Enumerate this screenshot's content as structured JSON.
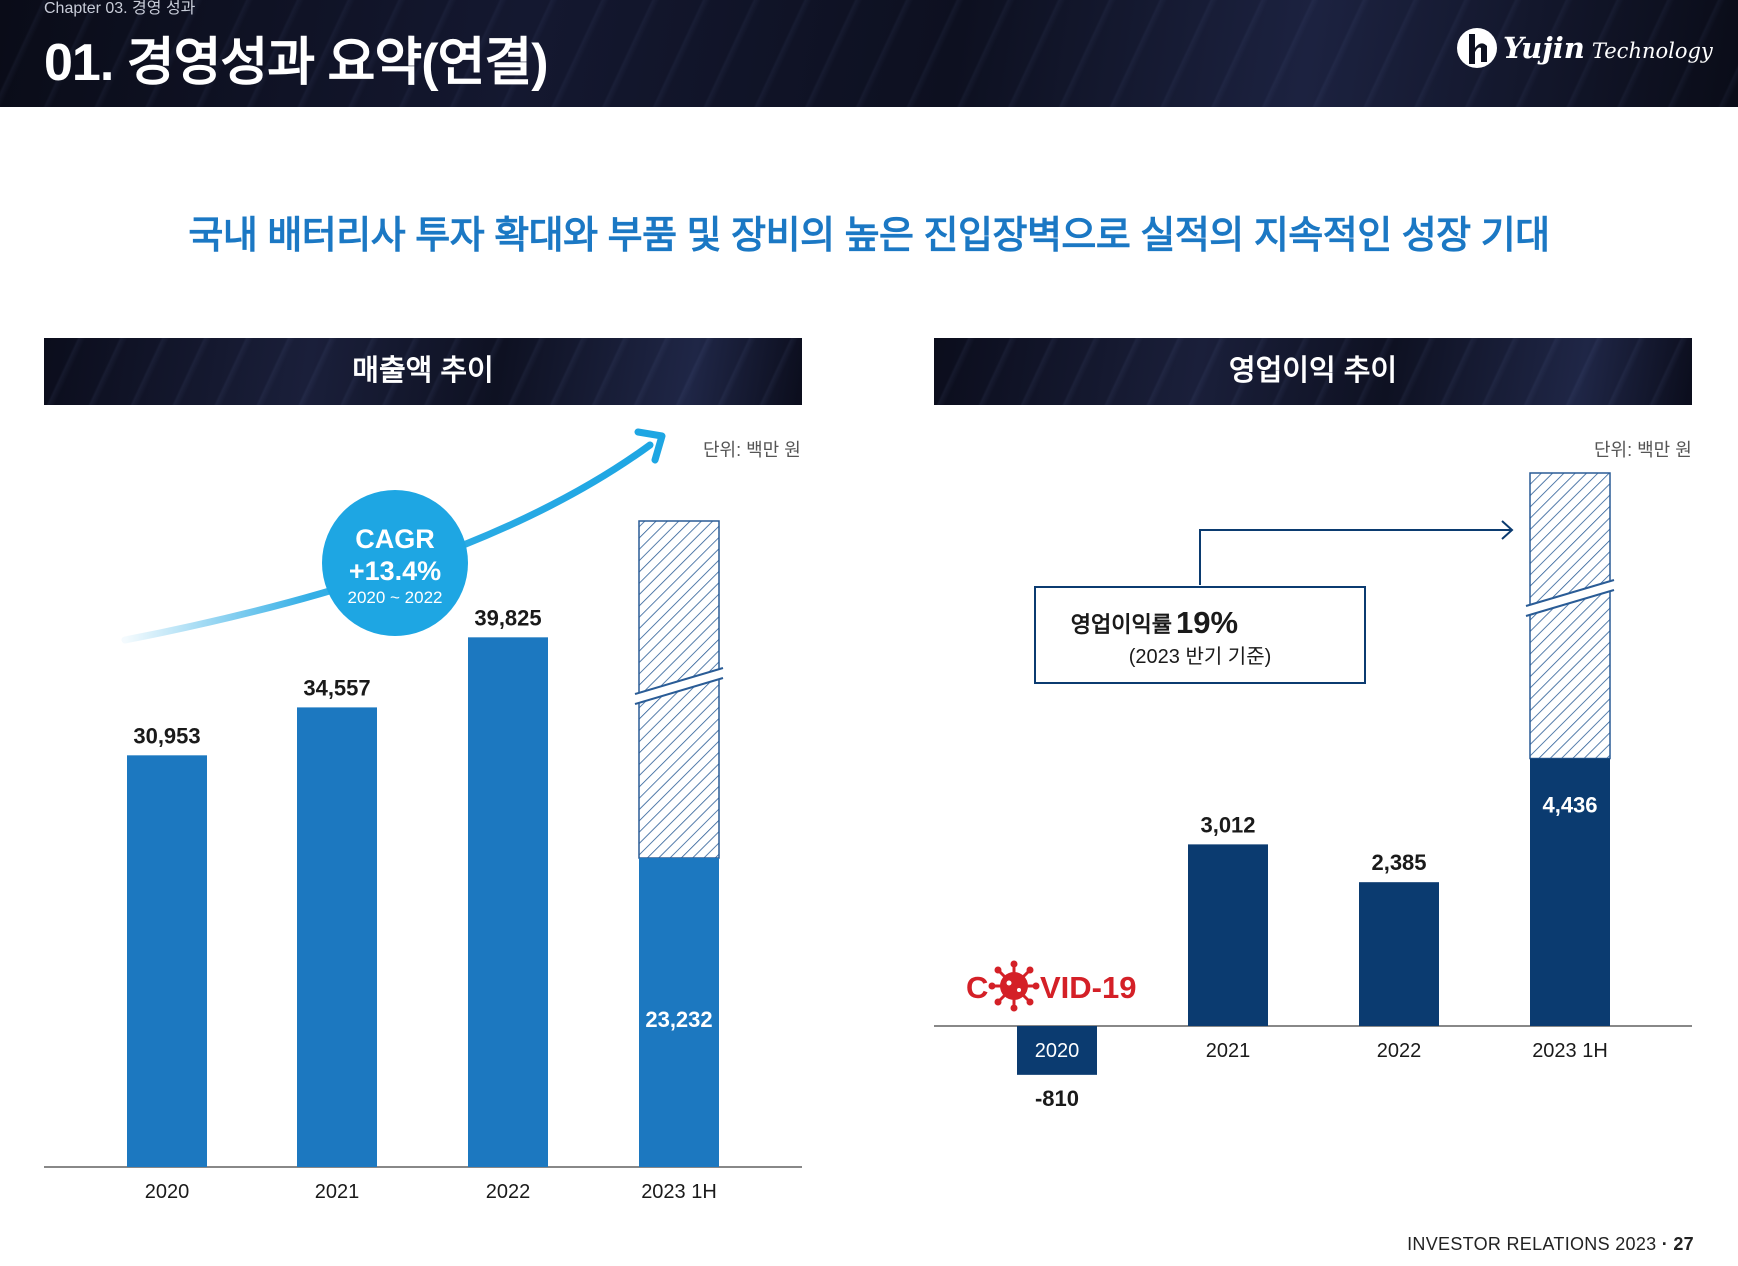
{
  "header": {
    "chapter": "Chapter 03. 경영 성과",
    "title": "01. 경영성과 요약(연결)",
    "logo_name": "Yujin",
    "logo_sub": "Technology"
  },
  "headline": "국내 배터리사 투자 확대와 부품 및 장비의 높은 진입장벽으로 실적의 지속적인 성장 기대",
  "colors": {
    "revenue_bar": "#1c78c0",
    "profit_bar": "#0b3b70",
    "accent": "#1ea6e3",
    "covid_red": "#d42027"
  },
  "footer": {
    "text": "INVESTOR RELATIONS 2023",
    "page": "27"
  },
  "chart_data": [
    {
      "type": "bar",
      "title": "매출액 추이",
      "unit_label": "단위: 백만 원",
      "categories": [
        "2020",
        "2021",
        "2022",
        "2023 1H"
      ],
      "values": [
        30953,
        34557,
        39825,
        23232
      ],
      "labels": [
        "30,953",
        "34,557",
        "39,825",
        "23,232"
      ],
      "ylim": [
        0,
        44000
      ],
      "annotation": {
        "title": "CAGR",
        "value": "+13.4%",
        "period": "2020 ~ 2022"
      }
    },
    {
      "type": "bar",
      "title": "영업이익 추이",
      "unit_label": "단위: 백만 원",
      "categories": [
        "2020",
        "2021",
        "2022",
        "2023 1H"
      ],
      "values": [
        -810,
        3012,
        2385,
        4436
      ],
      "labels": [
        "-810",
        "3,012",
        "2,385",
        "4,436"
      ],
      "ylim": [
        -1500,
        6500
      ],
      "annotation": {
        "title": "영업이익률",
        "value": "19%",
        "note": "(2023 반기 기준)"
      },
      "badge": {
        "left": "C",
        "right": "VID-19"
      }
    }
  ]
}
